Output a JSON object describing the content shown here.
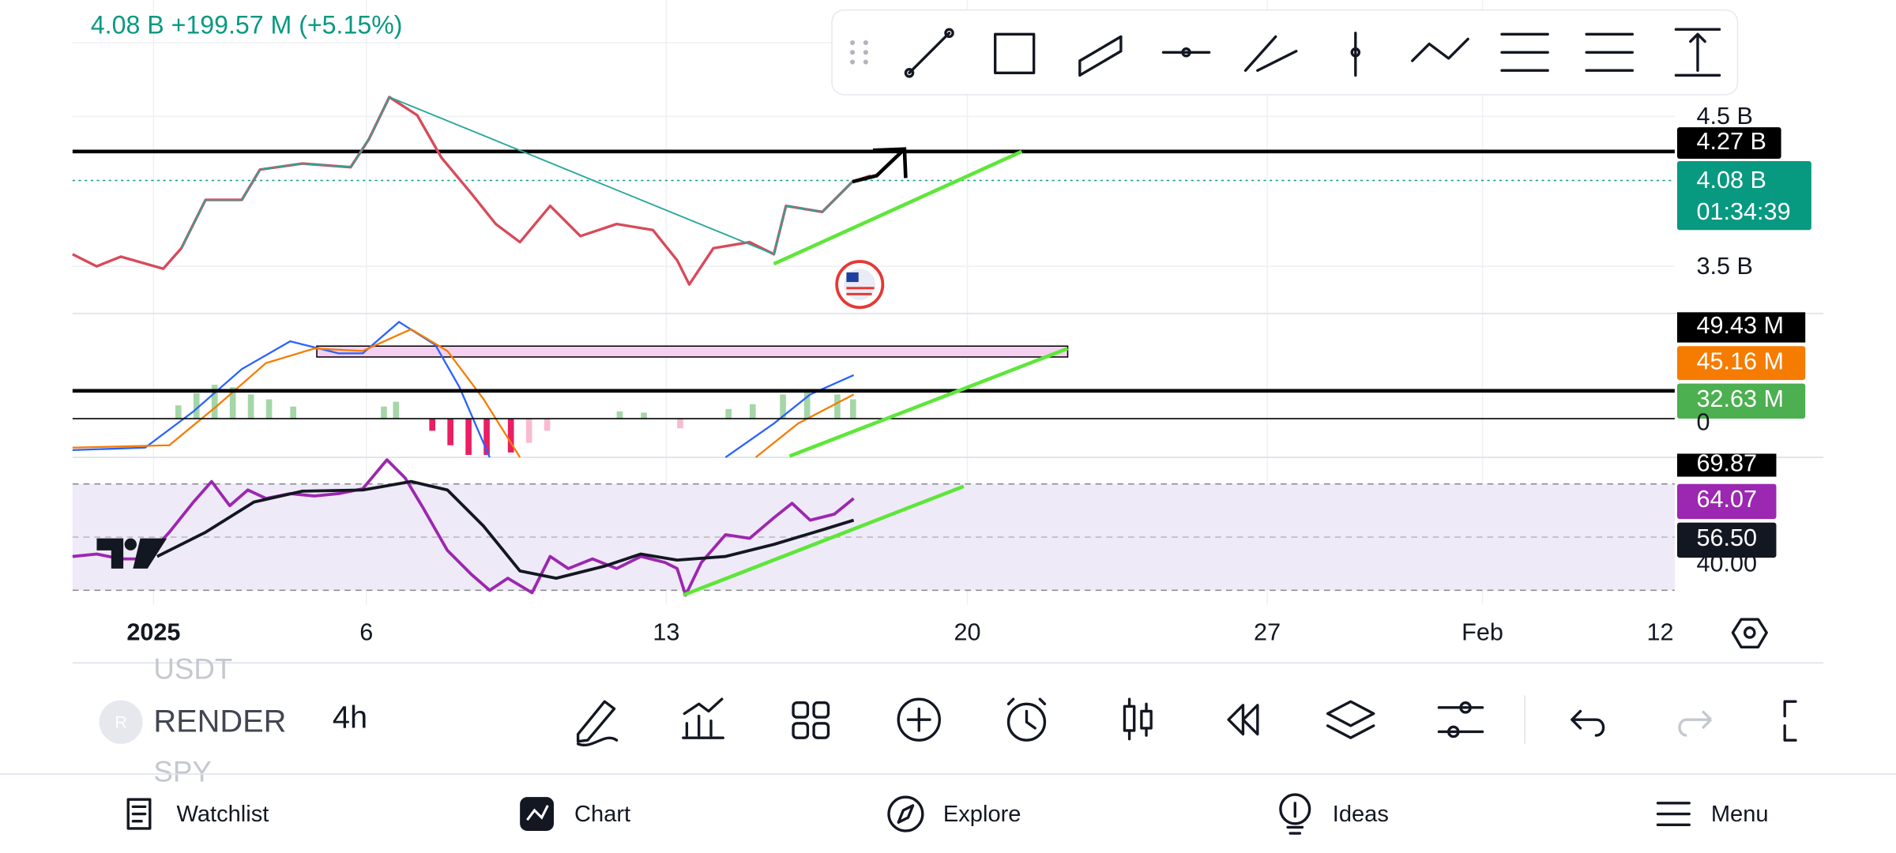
{
  "header": {
    "price_info": "4.08 B  +199.57 M (+5.15%)"
  },
  "price_axis": {
    "labels": [
      "4.5 B",
      "3.5 B"
    ],
    "line_label": "4.27 B",
    "current_price": "4.08 B",
    "countdown": "01:34:39"
  },
  "volume_axis": {
    "labels": [
      "49.43 M",
      "45.16 M",
      "32.63 M",
      "0"
    ]
  },
  "rsi_axis": {
    "labels": [
      "69.87",
      "64.07",
      "56.50",
      "40.00"
    ]
  },
  "time_axis": {
    "labels": [
      "2025",
      "6",
      "13",
      "20",
      "27",
      "Feb",
      "12"
    ]
  },
  "toolbar": {
    "symbol_icon": "R",
    "symbols": [
      "USDT",
      "RENDER",
      "SPY"
    ],
    "interval": "4h"
  },
  "nav": {
    "items": [
      "Watchlist",
      "Chart",
      "Explore",
      "Ideas",
      "Menu"
    ]
  }
}
